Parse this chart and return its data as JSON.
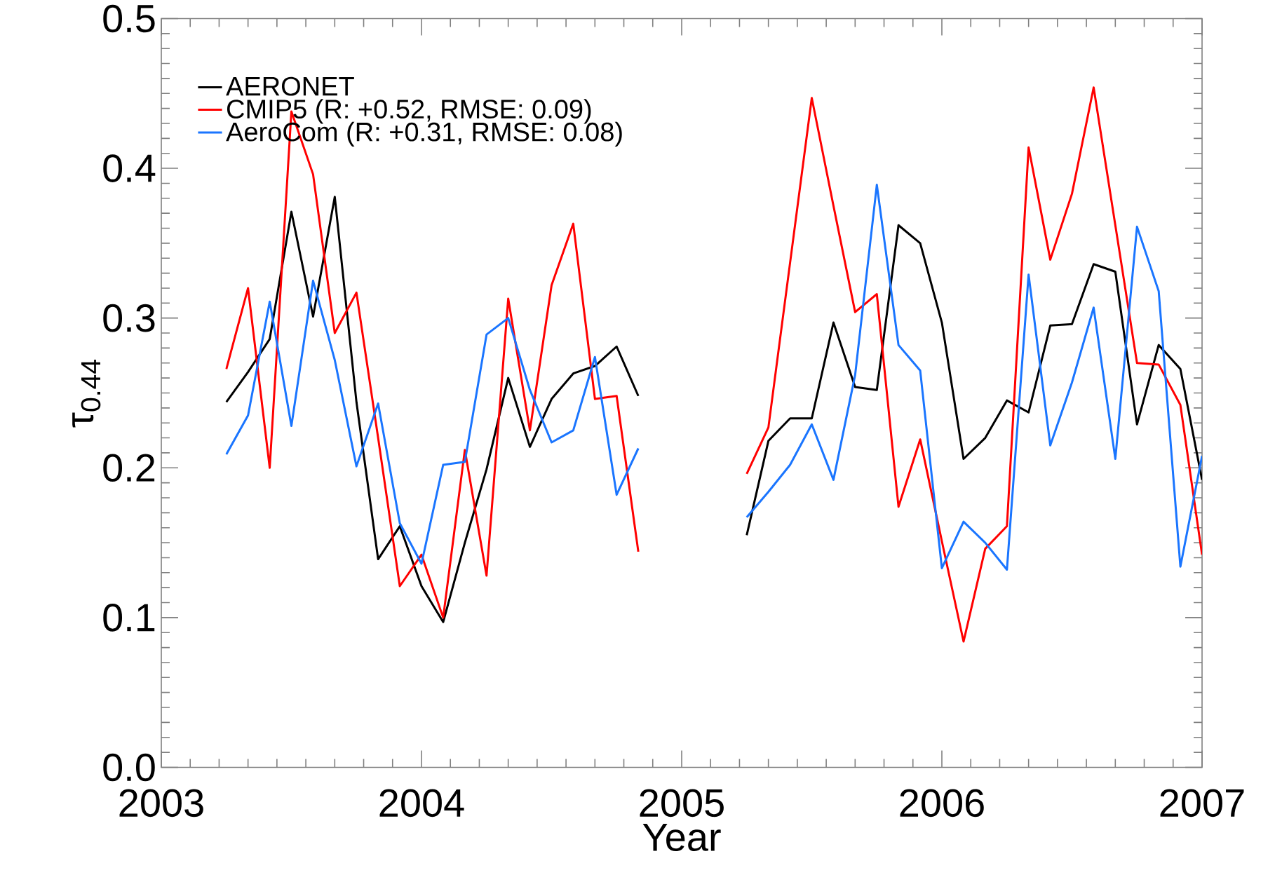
{
  "chart_data": {
    "type": "line",
    "xlabel": "Year",
    "ylabel": "τ$_{0.44}$",
    "x": [
      "2003-04",
      "2003-05",
      "2003-06",
      "2003-07",
      "2003-08",
      "2003-09",
      "2003-10",
      "2003-11",
      "2003-12",
      "2004-01",
      "2004-02",
      "2004-03",
      "2004-04",
      "2004-05",
      "2004-06",
      "2004-07",
      "2004-08",
      "2004-09",
      "2004-10",
      "2004-11",
      "2004-12",
      "2005-01",
      "2005-02",
      "2005-03",
      "2005-04",
      "2005-05",
      "2005-06",
      "2005-07",
      "2005-08",
      "2005-09",
      "2005-10",
      "2005-11",
      "2005-12",
      "2006-01",
      "2006-02",
      "2006-03",
      "2006-04",
      "2006-05",
      "2006-06",
      "2006-07",
      "2006-08",
      "2006-09",
      "2006-10",
      "2006-11",
      "2006-12",
      "2007-01"
    ],
    "series": [
      {
        "name": "AERONET",
        "color": "#000000",
        "values": [
          0.244,
          0.264,
          0.286,
          0.371,
          0.301,
          0.381,
          0.244,
          0.139,
          0.161,
          0.121,
          0.097,
          0.15,
          0.199,
          0.26,
          0.214,
          0.246,
          0.263,
          0.268,
          0.281,
          0.248,
          null,
          null,
          null,
          null,
          0.155,
          0.218,
          0.233,
          0.233,
          0.297,
          0.254,
          0.252,
          0.362,
          0.35,
          0.297,
          0.206,
          0.22,
          0.245,
          0.237,
          0.295,
          0.296,
          0.336,
          0.331,
          0.229,
          0.282,
          0.266,
          0.192
        ]
      },
      {
        "name": "CMIP5 (R: +0.52, RMSE:  0.09)",
        "color": "#ff0000",
        "values": [
          0.266,
          0.32,
          0.2,
          0.438,
          0.396,
          0.29,
          0.317,
          0.22,
          0.121,
          0.142,
          0.1,
          0.212,
          0.128,
          0.313,
          0.225,
          0.322,
          0.363,
          0.246,
          0.248,
          0.144,
          null,
          null,
          null,
          null,
          0.196,
          0.227,
          0.337,
          0.447,
          0.375,
          0.304,
          0.316,
          0.174,
          0.219,
          0.151,
          0.084,
          0.146,
          0.161,
          0.414,
          0.339,
          0.383,
          0.454,
          0.362,
          0.27,
          0.269,
          0.242,
          0.142
        ]
      },
      {
        "name": "AeroCom (R: +0.31, RMSE:  0.08)",
        "color": "#1a75ff",
        "values": [
          0.209,
          0.235,
          0.311,
          0.228,
          0.325,
          0.272,
          0.201,
          0.243,
          0.163,
          0.136,
          0.202,
          0.204,
          0.289,
          0.3,
          0.252,
          0.217,
          0.225,
          0.274,
          0.182,
          0.213,
          null,
          null,
          null,
          null,
          0.167,
          0.184,
          0.202,
          0.229,
          0.192,
          0.262,
          0.389,
          0.282,
          0.265,
          0.133,
          0.164,
          0.15,
          0.132,
          0.329,
          0.215,
          0.257,
          0.307,
          0.206,
          0.361,
          0.318,
          0.134,
          0.208
        ]
      }
    ],
    "xlim": [
      "2003",
      "2007"
    ],
    "xticks": [
      "2003",
      "2004",
      "2005",
      "2006",
      "2007"
    ],
    "ylim": [
      0,
      0.5
    ],
    "yticks": [
      {
        "value": 0,
        "label": "0.0"
      },
      0.1,
      0.2,
      0.3,
      0.4,
      0.5
    ],
    "legend": "top left"
  }
}
